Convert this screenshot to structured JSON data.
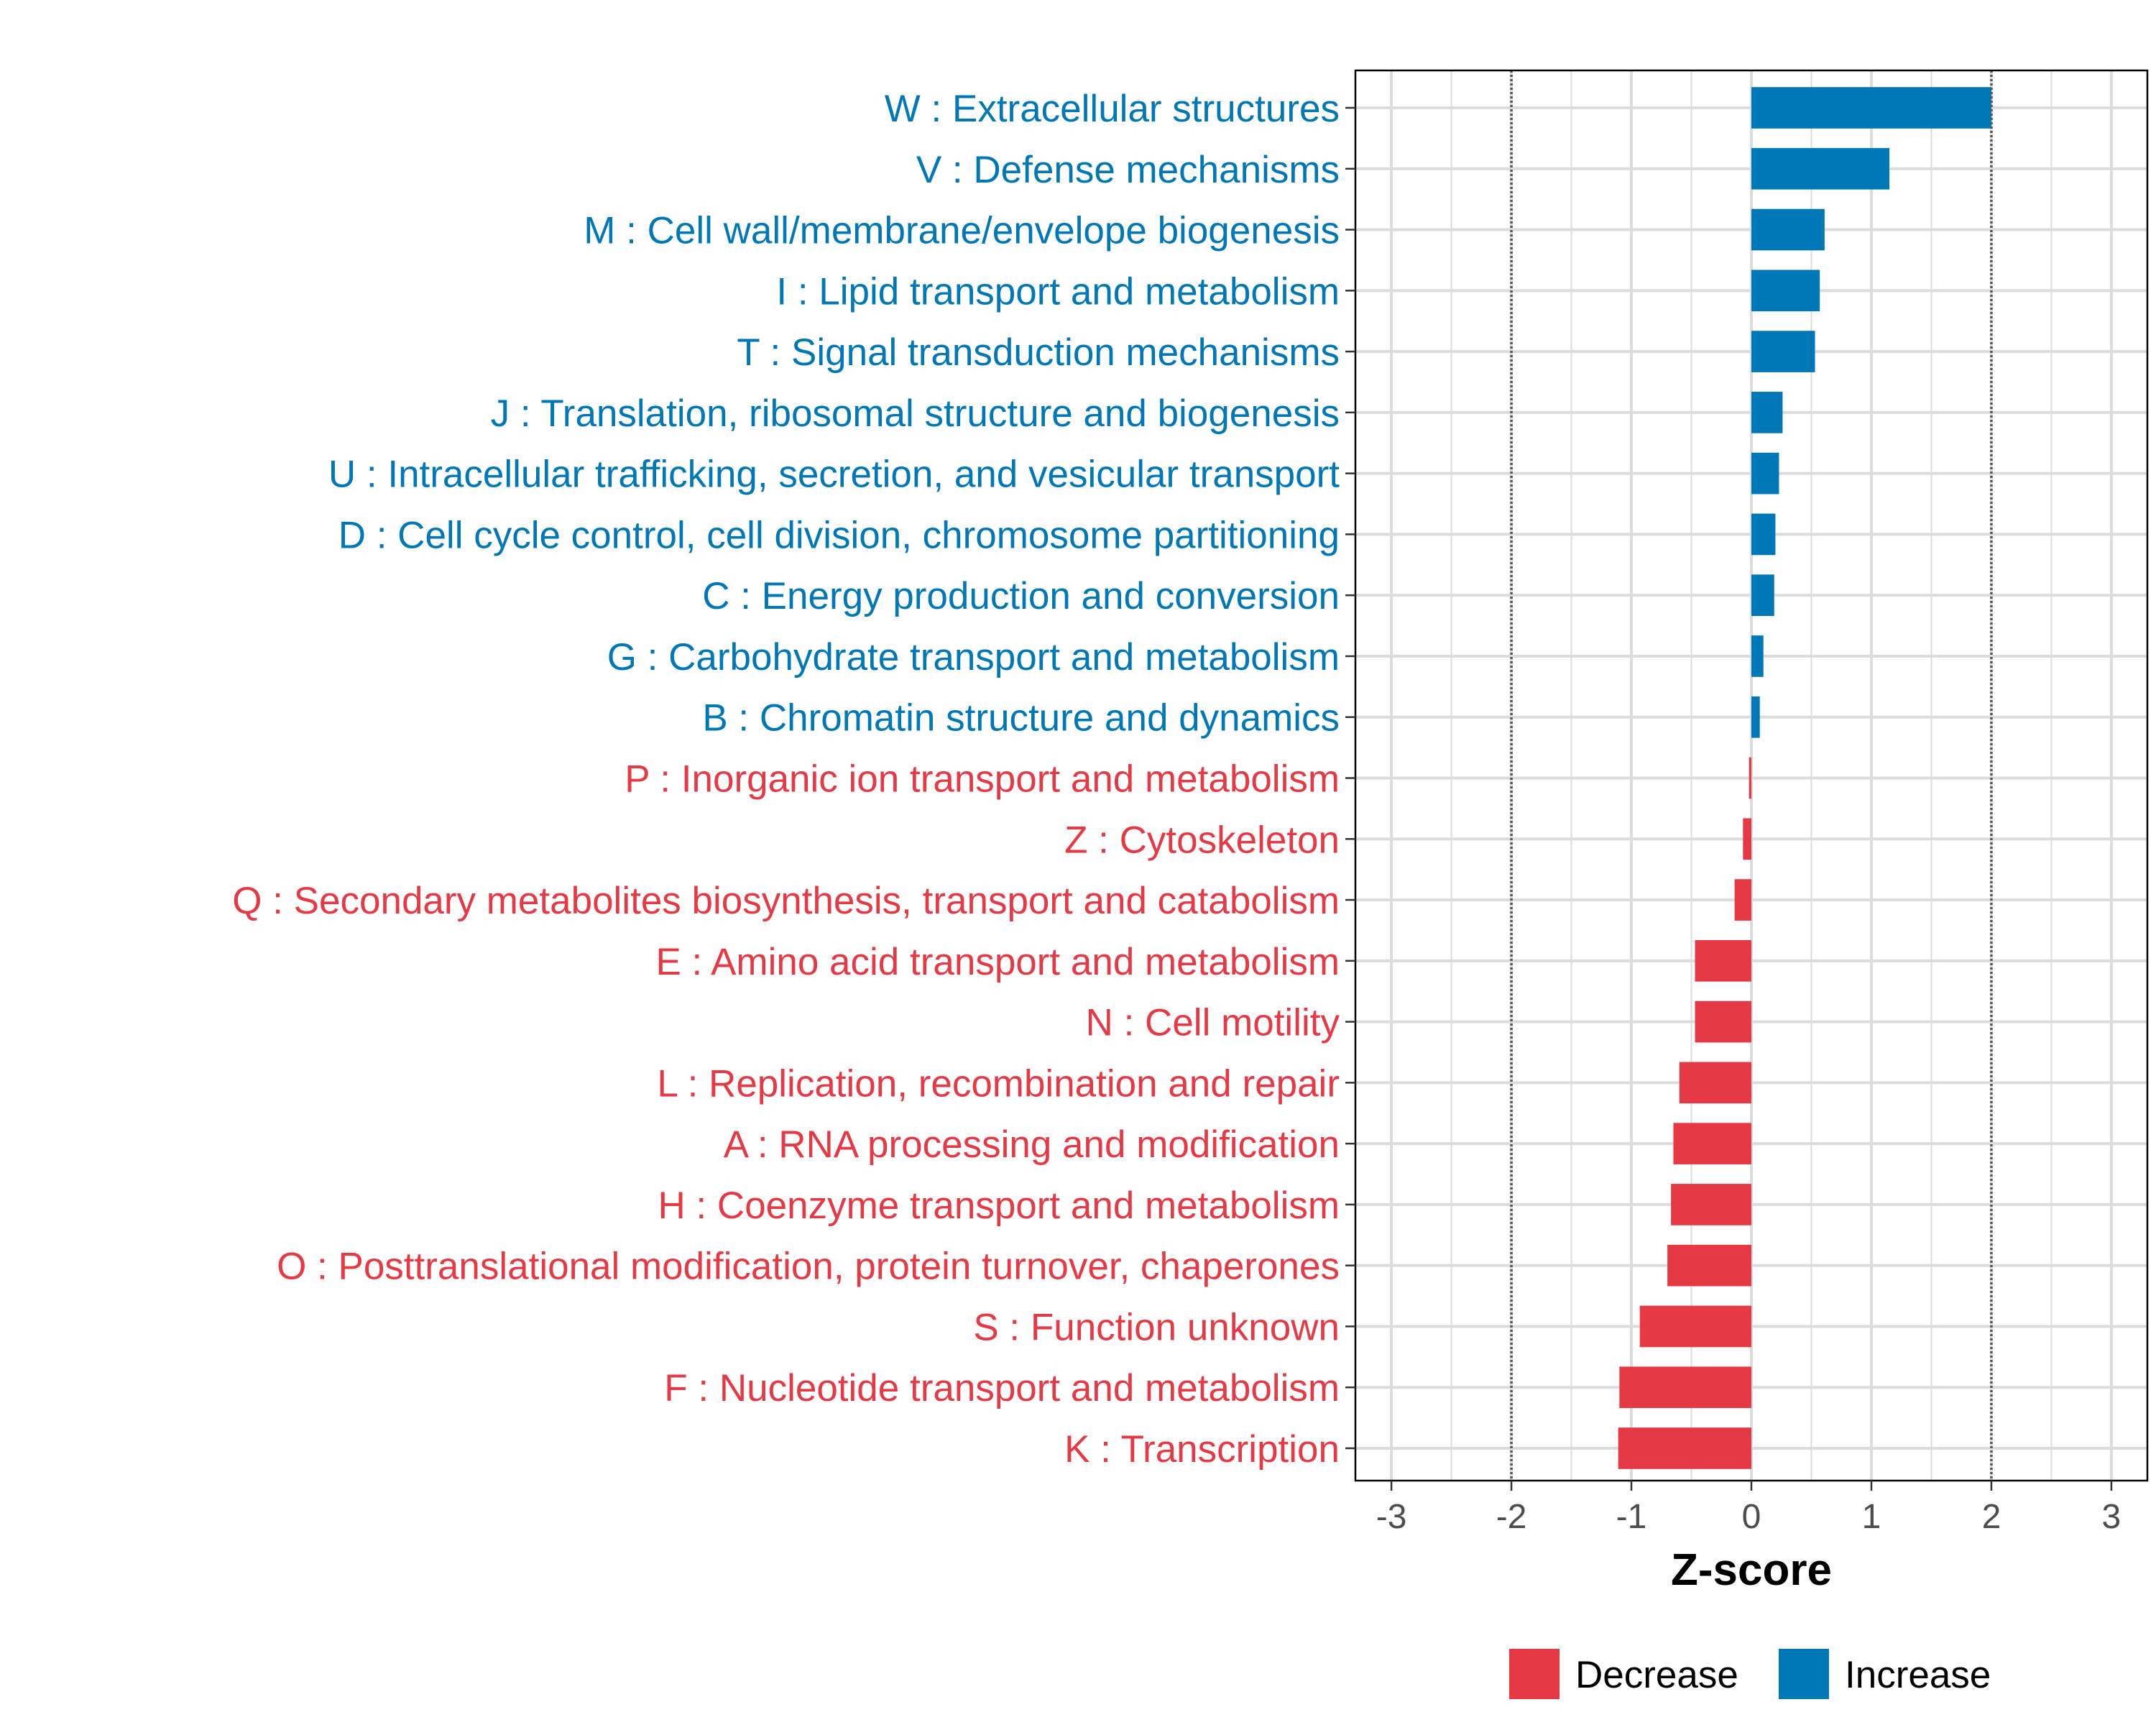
{
  "chart_data": {
    "type": "bar",
    "orientation": "horizontal",
    "title": "",
    "xlabel": "Z-score",
    "ylabel": "",
    "xlim": [
      -3.3,
      3.3
    ],
    "xticks": [
      -3,
      -2,
      -1,
      0,
      1,
      2,
      3
    ],
    "xtick_labels": [
      "-3",
      "-2",
      "-1",
      "0",
      "1",
      "2",
      "3"
    ],
    "reference_lines": [
      -2,
      2
    ],
    "grid": true,
    "legend_position": "bottom",
    "legend": [
      {
        "label": "Decrease",
        "color": "#E63946"
      },
      {
        "label": "Increase",
        "color": "#0077B6"
      }
    ],
    "categories": [
      "W : Extracellular structures",
      "V : Defense mechanisms",
      "M : Cell wall/membrane/envelope biogenesis",
      "I : Lipid transport and metabolism",
      "T : Signal transduction mechanisms",
      "J : Translation, ribosomal structure and biogenesis",
      "U : Intracellular trafficking, secretion, and vesicular transport",
      "D : Cell cycle control, cell division, chromosome partitioning",
      "C : Energy production and conversion",
      "G : Carbohydrate transport and metabolism",
      "B : Chromatin structure and dynamics",
      "P : Inorganic ion transport and metabolism",
      "Z : Cytoskeleton",
      "Q : Secondary metabolites biosynthesis, transport and catabolism",
      "E : Amino acid transport and metabolism",
      "N : Cell motility",
      "L : Replication, recombination and repair",
      "A : RNA processing and modification",
      "H : Coenzyme transport and metabolism",
      "O : Posttranslational modification, protein turnover, chaperones",
      "S : Function unknown",
      "F : Nucleotide transport and metabolism",
      "K : Transcription"
    ],
    "values": [
      2.0,
      1.15,
      0.61,
      0.57,
      0.53,
      0.26,
      0.23,
      0.2,
      0.19,
      0.1,
      0.07,
      -0.02,
      -0.07,
      -0.14,
      -0.47,
      -0.47,
      -0.6,
      -0.65,
      -0.67,
      -0.7,
      -0.93,
      -1.1,
      -1.11
    ],
    "direction": [
      "Increase",
      "Increase",
      "Increase",
      "Increase",
      "Increase",
      "Increase",
      "Increase",
      "Increase",
      "Increase",
      "Increase",
      "Increase",
      "Decrease",
      "Decrease",
      "Decrease",
      "Decrease",
      "Decrease",
      "Decrease",
      "Decrease",
      "Decrease",
      "Decrease",
      "Decrease",
      "Decrease",
      "Decrease"
    ]
  }
}
